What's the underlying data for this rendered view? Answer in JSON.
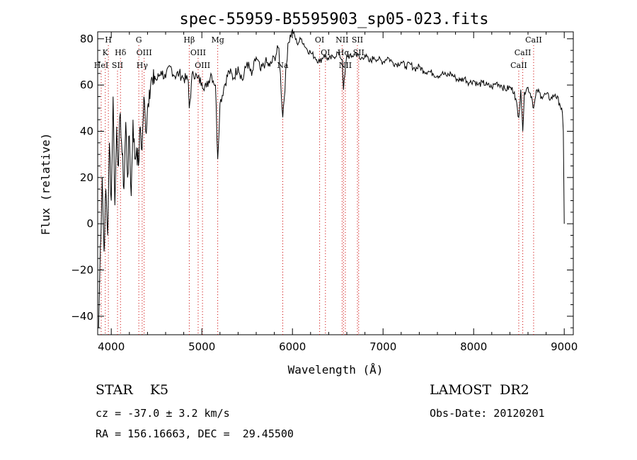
{
  "chart_data": {
    "type": "line",
    "title": "spec-55959-B5595903_sp05-023.fits",
    "xlabel": "Wavelength (Å)",
    "ylabel": "Flux (relative)",
    "xlim": [
      3850,
      9100
    ],
    "ylim": [
      -48,
      83
    ],
    "x_ticks": [
      4000,
      5000,
      6000,
      7000,
      8000,
      9000
    ],
    "y_ticks": [
      -40,
      -20,
      0,
      20,
      40,
      60,
      80
    ],
    "grid": false,
    "line_color": "#000000",
    "marker_color": "#cc0000",
    "series": [
      {
        "x": [
          3860,
          3880,
          3900,
          3920,
          3940,
          3960,
          3980,
          4000,
          4020,
          4040,
          4060,
          4080,
          4100,
          4120,
          4140,
          4160,
          4180,
          4200,
          4220,
          4240,
          4260,
          4280,
          4300,
          4320,
          4340,
          4360,
          4380,
          4400,
          4420,
          4440,
          4460,
          4480,
          4500,
          4550,
          4600,
          4650,
          4700,
          4750,
          4800,
          4850,
          4861,
          4900,
          4950,
          5000,
          5050,
          5100,
          5150,
          5175,
          5200,
          5250,
          5300,
          5350,
          5400,
          5450,
          5500,
          5550,
          5600,
          5650,
          5700,
          5750,
          5800,
          5850,
          5893,
          5950,
          6000,
          6050,
          6100,
          6150,
          6200,
          6250,
          6300,
          6350,
          6400,
          6450,
          6500,
          6550,
          6563,
          6600,
          6650,
          6700,
          6750,
          6800,
          6850,
          6900,
          6950,
          7000,
          7050,
          7100,
          7150,
          7200,
          7250,
          7300,
          7350,
          7400,
          7450,
          7500,
          7550,
          7600,
          7650,
          7700,
          7750,
          7800,
          7850,
          7900,
          7950,
          8000,
          8050,
          8100,
          8150,
          8200,
          8250,
          8300,
          8350,
          8400,
          8450,
          8498,
          8520,
          8542,
          8560,
          8600,
          8640,
          8662,
          8700,
          8750,
          8800,
          8850,
          8900,
          8950,
          8980,
          8990,
          9000
        ],
        "y": [
          -45,
          -10,
          20,
          -12,
          15,
          -5,
          35,
          10,
          55,
          8,
          42,
          25,
          48,
          30,
          15,
          44,
          20,
          38,
          12,
          45,
          28,
          33,
          25,
          42,
          32,
          55,
          40,
          50,
          58,
          62,
          60,
          64,
          62,
          66,
          63,
          68,
          64,
          65,
          63,
          62,
          50,
          66,
          63,
          61,
          59,
          65,
          60,
          28,
          52,
          60,
          66,
          63,
          68,
          62,
          70,
          64,
          72,
          66,
          70,
          68,
          72,
          76,
          46,
          78,
          84,
          78,
          80,
          76,
          74,
          72,
          70,
          73,
          71,
          72,
          74,
          71,
          58,
          73,
          72,
          74,
          71,
          73,
          70,
          72,
          71,
          70,
          72,
          70,
          69,
          70,
          68,
          69,
          67,
          68,
          66,
          66,
          65,
          64,
          65,
          64,
          65,
          63,
          62,
          63,
          61,
          62,
          60,
          61,
          60,
          59,
          61,
          60,
          58,
          59,
          57,
          46,
          58,
          40,
          57,
          59,
          55,
          50,
          58,
          55,
          56,
          54,
          56,
          52,
          48,
          40,
          0
        ]
      }
    ],
    "lines": [
      {
        "name": "H",
        "wave": 3968,
        "row": 0
      },
      {
        "name": "K",
        "wave": 3934,
        "row": 1
      },
      {
        "name": "HeI",
        "wave": 3889,
        "row": 2
      },
      {
        "name": "Hδ",
        "wave": 4102,
        "row": 1
      },
      {
        "name": "SII",
        "wave": 4069,
        "row": 2
      },
      {
        "name": "G",
        "wave": 4304,
        "row": 0
      },
      {
        "name": "OIII",
        "wave": 4363,
        "row": 1
      },
      {
        "name": "Hγ",
        "wave": 4341,
        "row": 2
      },
      {
        "name": "Hβ",
        "wave": 4861,
        "row": 0
      },
      {
        "name": "OIII",
        "wave": 4959,
        "row": 1
      },
      {
        "name": "OIII",
        "wave": 5007,
        "row": 2
      },
      {
        "name": "Mg",
        "wave": 5175,
        "row": 0
      },
      {
        "name": "Na",
        "wave": 5893,
        "row": 2
      },
      {
        "name": "OI",
        "wave": 6300,
        "row": 0
      },
      {
        "name": "OI",
        "wave": 6364,
        "row": 1
      },
      {
        "name": "NII",
        "wave": 6548,
        "row": 0
      },
      {
        "name": "SII",
        "wave": 6717,
        "row": 0
      },
      {
        "name": "Hα",
        "wave": 6563,
        "row": 1
      },
      {
        "name": "SII",
        "wave": 6731,
        "row": 1
      },
      {
        "name": "NII",
        "wave": 6584,
        "row": 2
      },
      {
        "name": "CaII",
        "wave": 8662,
        "row": 0
      },
      {
        "name": "CaII",
        "wave": 8542,
        "row": 1
      },
      {
        "name": "CaII",
        "wave": 8498,
        "row": 2
      }
    ]
  },
  "info": {
    "class": "STAR    K5",
    "survey": "LAMOST  DR2",
    "cz": "cz = -37.0 ± 3.2 km/s",
    "obs_date": "Obs-Date: 20120201",
    "coords": "RA = 156.16663, DEC =  29.45500"
  }
}
